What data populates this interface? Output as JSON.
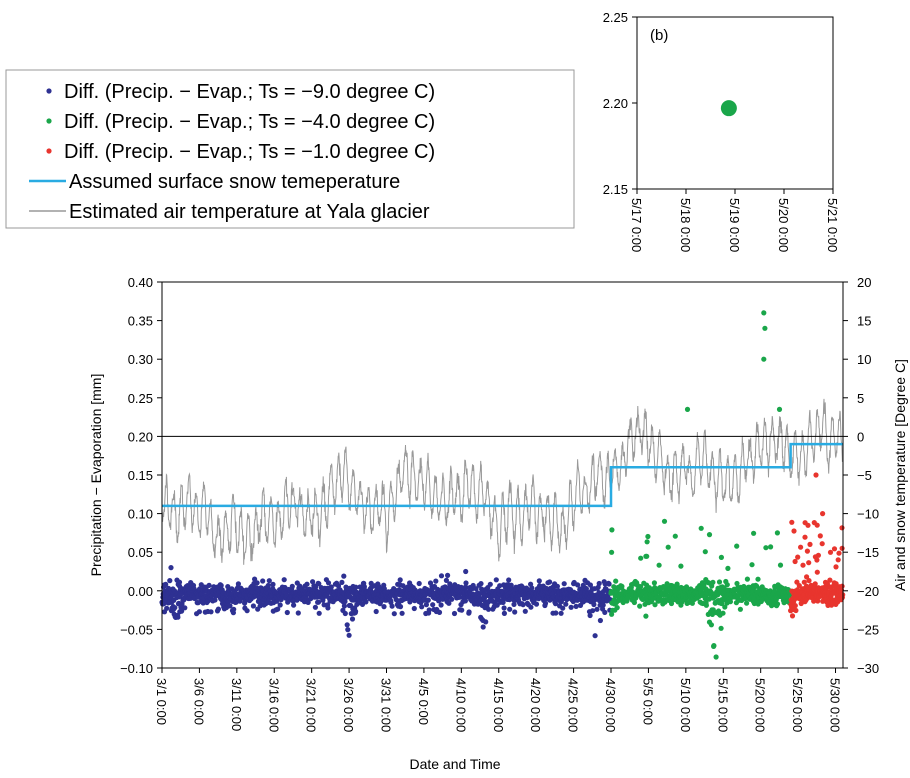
{
  "chart_data": [
    {
      "type": "scatter",
      "panel_label": "(b)",
      "x_ticks": [
        "5/17 0:00",
        "5/18 0:00",
        "5/19 0:00",
        "5/20 0:00",
        "5/21 0:00"
      ],
      "xlim_days": [
        "5/17 0:00",
        "5/21 0:00"
      ],
      "ylim": [
        2.15,
        2.25
      ],
      "y_ticks": [
        "2.15",
        "2.20",
        "2.25"
      ],
      "series": [
        {
          "legend_ref": 1,
          "color": "#1aa64a",
          "points": [
            {
              "x": "5/18 21:00",
              "y": 2.197
            }
          ]
        }
      ]
    },
    {
      "type": "scatter",
      "xlabel": "Date and Time",
      "ylabel_left": "Precipitation − Evaporation [mm]",
      "ylabel_right": "Air and snow temperature [Degree C]",
      "ylim_left": [
        -0.1,
        0.4
      ],
      "ylim_right": [
        -30,
        20
      ],
      "y_ticks_left": [
        "−0.10",
        "−0.05",
        "0.00",
        "0.05",
        "0.10",
        "0.15",
        "0.20",
        "0.25",
        "0.30",
        "0.35",
        "0.40"
      ],
      "y_ticks_right": [
        "−30",
        "−25",
        "−20",
        "−15",
        "−10",
        "−5",
        "0",
        "5",
        "10",
        "15",
        "20"
      ],
      "x_ticks": [
        "3/1 0:00",
        "3/6 0:00",
        "3/11 0:00",
        "3/16 0:00",
        "3/21 0:00",
        "3/26 0:00",
        "3/31 0:00",
        "4/5 0:00",
        "4/10 0:00",
        "4/15 0:00",
        "4/20 0:00",
        "4/25 0:00",
        "4/30 0:00",
        "5/5 0:00",
        "5/10 0:00",
        "5/15 0:00",
        "5/20 0:00",
        "5/25 0:00",
        "5/30 0:00"
      ],
      "reference_line_y": 0.2,
      "legend": [
        {
          "label": "Diff. (Precip. − Evap.; Ts = −9.0 degree C)",
          "color": "#2e3192",
          "kind": "dot"
        },
        {
          "label": "Diff. (Precip. − Evap.; Ts = −4.0 degree C)",
          "color": "#1aa64a",
          "kind": "dot"
        },
        {
          "label": "Diff. (Precip. − Evap.; Ts = −1.0 degree C)",
          "color": "#e8352e",
          "kind": "dot"
        },
        {
          "label": "Assumed surface snow temeperature",
          "color": "#29abe2",
          "kind": "line"
        },
        {
          "label": "Estimated air temperature at Yala glacier",
          "color": "#999999",
          "kind": "line"
        }
      ],
      "snow_temperature_steps": [
        {
          "from": "3/1 0:00",
          "to": "4/30 0:00",
          "temp": -9.0
        },
        {
          "from": "4/30 0:00",
          "to": "5/24 0:00",
          "temp": -4.0
        },
        {
          "from": "5/24 0:00",
          "to": "5/31 0:00",
          "temp": -1.0
        }
      ],
      "air_temperature_trend": [
        {
          "date": "3/1",
          "temp": -8
        },
        {
          "date": "3/5",
          "temp": -9
        },
        {
          "date": "3/9",
          "temp": -13
        },
        {
          "date": "3/13",
          "temp": -12
        },
        {
          "date": "3/17",
          "temp": -10
        },
        {
          "date": "3/21",
          "temp": -8
        },
        {
          "date": "3/25",
          "temp": -7
        },
        {
          "date": "3/29",
          "temp": -9
        },
        {
          "date": "4/2",
          "temp": -8
        },
        {
          "date": "4/6",
          "temp": -8
        },
        {
          "date": "4/10",
          "temp": -7
        },
        {
          "date": "4/14",
          "temp": -8
        },
        {
          "date": "4/18",
          "temp": -9
        },
        {
          "date": "4/22",
          "temp": -12
        },
        {
          "date": "4/26",
          "temp": -8
        },
        {
          "date": "4/30",
          "temp": -4
        },
        {
          "date": "5/4",
          "temp": -3
        },
        {
          "date": "5/8",
          "temp": -5
        },
        {
          "date": "5/12",
          "temp": -3
        },
        {
          "date": "5/16",
          "temp": -4
        },
        {
          "date": "5/20",
          "temp": -2
        },
        {
          "date": "5/24",
          "temp": -2
        },
        {
          "date": "5/28",
          "temp": -1
        },
        {
          "date": "5/31",
          "temp": -1
        }
      ],
      "diff_series": [
        {
          "legend_ref": 0,
          "from": "3/1 0:00",
          "to": "4/30 0:00",
          "typical_range": [
            -0.03,
            0.005
          ],
          "dip_periods": [
            {
              "date": "3/3",
              "min": -0.05
            },
            {
              "date": "3/10",
              "min": -0.045
            },
            {
              "date": "3/26",
              "min": -0.065
            },
            {
              "date": "4/13",
              "min": -0.05
            },
            {
              "date": "4/28",
              "min": -0.065
            }
          ],
          "peaks": [
            {
              "date": "3/2",
              "value": 0.03
            },
            {
              "date": "4/8",
              "value": 0.02
            },
            {
              "date": "4/10",
              "value": 0.025
            }
          ]
        },
        {
          "legend_ref": 1,
          "from": "4/30 0:00",
          "to": "5/24 0:00",
          "typical_range": [
            -0.02,
            0.01
          ],
          "dip_periods": [
            {
              "date": "4/30",
              "min": -0.05
            },
            {
              "date": "5/14",
              "min": -0.09
            }
          ],
          "peaks": [
            {
              "date": "5/10",
              "value": 0.235
            },
            {
              "date": "5/20",
              "value": 0.36
            },
            {
              "date": "5/20",
              "value": 0.34
            },
            {
              "date": "5/20",
              "value": 0.3
            },
            {
              "date": "5/22",
              "value": 0.235
            }
          ]
        },
        {
          "legend_ref": 2,
          "from": "5/24 0:00",
          "to": "5/31 0:00",
          "typical_range": [
            -0.02,
            0.005
          ],
          "dip_periods": [
            {
              "date": "5/24",
              "min": -0.05
            }
          ],
          "peaks": [
            {
              "date": "5/27",
              "value": 0.15
            },
            {
              "date": "5/28",
              "value": 0.1
            }
          ]
        }
      ]
    }
  ]
}
